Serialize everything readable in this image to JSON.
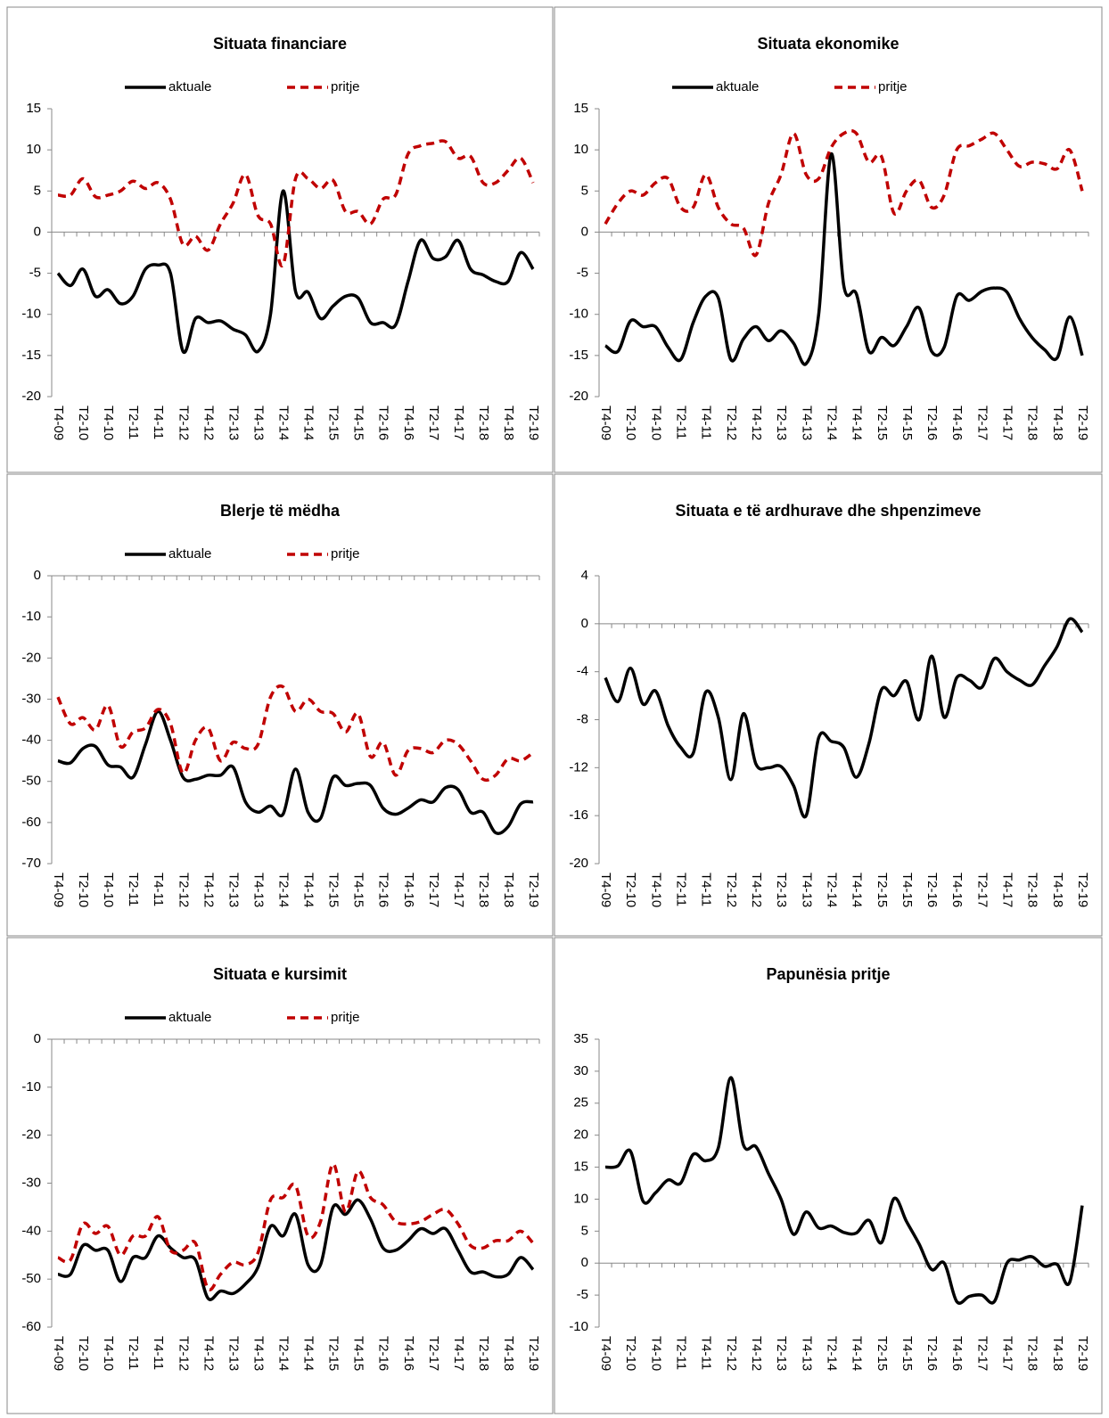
{
  "chart_data": [
    {
      "type": "line",
      "title": "Situata financiare",
      "categories": [
        "T4-09",
        null,
        "T2-10",
        null,
        "T4-10",
        null,
        "T2-11",
        null,
        "T4-11",
        null,
        "T2-12",
        null,
        "T4-12",
        null,
        "T2-13",
        null,
        "T4-13",
        null,
        "T2-14",
        null,
        "T4-14",
        null,
        "T2-15",
        null,
        "T4-15",
        null,
        "T2-16",
        null,
        "T4-16",
        null,
        "T2-17",
        null,
        "T4-17",
        null,
        "T2-18",
        null,
        "T4-18",
        null,
        "T2-19"
      ],
      "series": [
        {
          "name": "aktuale",
          "color": "#000000",
          "style": "solid",
          "values": [
            -5,
            -6.5,
            -4.5,
            -7.8,
            -7,
            -8.7,
            -7.8,
            -4.5,
            -4,
            -5,
            -14.5,
            -10.5,
            -11,
            -10.8,
            -11.8,
            -12.5,
            -14.5,
            -10,
            5,
            -7.2,
            -7.3,
            -10.5,
            -9,
            -7.8,
            -8,
            -11,
            -11,
            -11.3,
            -6,
            -1,
            -3.2,
            -3,
            -1,
            -4.5,
            -5.2,
            -6,
            -6,
            -2.5,
            -4.5
          ]
        },
        {
          "name": "pritje",
          "color": "#c00000",
          "style": "dashed",
          "values": [
            4.5,
            4.5,
            6.5,
            4.3,
            4.5,
            5,
            6.2,
            5.3,
            6,
            4,
            -1.5,
            -0.5,
            -2.2,
            1,
            3.5,
            7,
            2,
            1,
            -4,
            6.5,
            6.5,
            5.3,
            6.3,
            2.5,
            2.5,
            1,
            4,
            4.5,
            9.5,
            10.5,
            10.8,
            11,
            9,
            9.2,
            6,
            6,
            7.5,
            9,
            6
          ]
        }
      ],
      "ylim": [
        -20,
        15
      ],
      "yticks": [
        -20,
        -15,
        -10,
        -5,
        0,
        5,
        10,
        15
      ],
      "legend": "top"
    },
    {
      "type": "line",
      "title": "Situata ekonomike",
      "categories": [
        "T4-09",
        null,
        "T2-10",
        null,
        "T4-10",
        null,
        "T2-11",
        null,
        "T4-11",
        null,
        "T2-12",
        null,
        "T4-12",
        null,
        "T2-13",
        null,
        "T4-13",
        null,
        "T2-14",
        null,
        "T4-14",
        null,
        "T2-15",
        null,
        "T4-15",
        null,
        "T2-16",
        null,
        "T4-16",
        null,
        "T2-17",
        null,
        "T4-17",
        null,
        "T2-18",
        null,
        "T4-18",
        null,
        "T2-19"
      ],
      "series": [
        {
          "name": "aktuale",
          "color": "#000000",
          "style": "solid",
          "values": [
            -13.8,
            -14.5,
            -10.8,
            -11.5,
            -11.5,
            -14,
            -15.5,
            -11,
            -7.8,
            -8,
            -15.5,
            -13,
            -11.5,
            -13.2,
            -12,
            -13.5,
            -16,
            -10,
            9.5,
            -6.5,
            -7.5,
            -14.5,
            -12.8,
            -13.8,
            -11.5,
            -9.2,
            -14.5,
            -14,
            -7.8,
            -8.3,
            -7.2,
            -6.8,
            -7.3,
            -10.5,
            -12.8,
            -14.3,
            -15.3,
            -10.3,
            -15
          ]
        },
        {
          "name": "pritje",
          "color": "#c00000",
          "style": "dashed",
          "values": [
            1,
            3.5,
            5,
            4.5,
            6,
            6.5,
            3,
            3,
            7,
            3,
            1,
            0.5,
            -2.8,
            3.5,
            7,
            12,
            7,
            6.5,
            10.3,
            12,
            12,
            8.5,
            9.2,
            2.3,
            5,
            6.3,
            3,
            4.5,
            10,
            10.5,
            11.3,
            12,
            10,
            8,
            8.5,
            8.3,
            7.7,
            10,
            5
          ]
        }
      ],
      "ylim": [
        -20,
        15
      ],
      "yticks": [
        -20,
        -15,
        -10,
        -5,
        0,
        5,
        10,
        15
      ],
      "legend": "top"
    },
    {
      "type": "line",
      "title": "Blerje të mëdha",
      "categories": [
        "T4-09",
        null,
        "T2-10",
        null,
        "T4-10",
        null,
        "T2-11",
        null,
        "T4-11",
        null,
        "T2-12",
        null,
        "T4-12",
        null,
        "T2-13",
        null,
        "T4-13",
        null,
        "T2-14",
        null,
        "T4-14",
        null,
        "T2-15",
        null,
        "T4-15",
        null,
        "T2-16",
        null,
        "T4-16",
        null,
        "T2-17",
        null,
        "T4-17",
        null,
        "T2-18",
        null,
        "T4-18",
        null,
        "T2-19"
      ],
      "series": [
        {
          "name": "aktuale",
          "color": "#000000",
          "style": "solid",
          "values": [
            -45,
            -45.5,
            -42,
            -41.5,
            -46,
            -46.5,
            -49,
            -41,
            -33,
            -40,
            -49,
            -49.5,
            -48.5,
            -48.5,
            -46.5,
            -55,
            -57.5,
            -56,
            -58,
            -47,
            -57.5,
            -59,
            -49,
            -51,
            -50.5,
            -51,
            -56.5,
            -58,
            -56.5,
            -54.5,
            -55,
            -51.5,
            -52,
            -57.5,
            -57.5,
            -62.5,
            -61,
            -55.5,
            -55
          ]
        },
        {
          "name": "pritje",
          "color": "#c00000",
          "style": "dashed",
          "values": [
            -29.5,
            -36,
            -34.5,
            -37.5,
            -31.5,
            -41.5,
            -38,
            -37,
            -32.5,
            -36,
            -48,
            -40,
            -37,
            -45,
            -40.5,
            -42,
            -41,
            -29.5,
            -27,
            -33,
            -30,
            -33,
            -33.5,
            -38,
            -33.5,
            -44,
            -40.5,
            -48.5,
            -42.5,
            -42,
            -43,
            -40,
            -41,
            -45,
            -49.5,
            -48.5,
            -44.5,
            -45,
            -43
          ]
        }
      ],
      "ylim": [
        -70,
        0
      ],
      "yticks": [
        -70,
        -60,
        -50,
        -40,
        -30,
        -20,
        -10,
        0
      ],
      "legend": "top"
    },
    {
      "type": "line",
      "title": "Situata e të ardhurave dhe shpenzimeve",
      "categories": [
        "T4-09",
        null,
        "T2-10",
        null,
        "T4-10",
        null,
        "T2-11",
        null,
        "T4-11",
        null,
        "T2-12",
        null,
        "T4-12",
        null,
        "T2-13",
        null,
        "T4-13",
        null,
        "T2-14",
        null,
        "T4-14",
        null,
        "T2-15",
        null,
        "T4-15",
        null,
        "T2-16",
        null,
        "T4-16",
        null,
        "T2-17",
        null,
        "T4-17",
        null,
        "T2-18",
        null,
        "T4-18",
        null,
        "T2-19"
      ],
      "series": [
        {
          "color": "#000000",
          "style": "solid",
          "values": [
            -4.5,
            -6.5,
            -3.7,
            -6.7,
            -5.6,
            -8.5,
            -10.3,
            -10.8,
            -5.7,
            -7.8,
            -13,
            -7.5,
            -11.7,
            -12,
            -11.9,
            -13.5,
            -16,
            -9.5,
            -9.8,
            -10.3,
            -12.8,
            -10,
            -5.5,
            -6,
            -4.8,
            -8,
            -2.7,
            -7.8,
            -4.5,
            -4.7,
            -5.3,
            -2.9,
            -4,
            -4.7,
            -5.1,
            -3.5,
            -1.9,
            0.4,
            -0.7
          ]
        }
      ],
      "ylim": [
        -20,
        4
      ],
      "yticks": [
        -20,
        -16,
        -12,
        -8,
        -4,
        0,
        4
      ]
    },
    {
      "type": "line",
      "title": "Situata e kursimit",
      "categories": [
        "T4-09",
        null,
        "T2-10",
        null,
        "T4-10",
        null,
        "T2-11",
        null,
        "T4-11",
        null,
        "T2-12",
        null,
        "T4-12",
        null,
        "T2-13",
        null,
        "T4-13",
        null,
        "T2-14",
        null,
        "T4-14",
        null,
        "T2-15",
        null,
        "T4-15",
        null,
        "T2-16",
        null,
        "T4-16",
        null,
        "T2-17",
        null,
        "T4-17",
        null,
        "T2-18",
        null,
        "T4-18",
        null,
        "T2-19"
      ],
      "series": [
        {
          "name": "aktuale",
          "color": "#000000",
          "style": "solid",
          "values": [
            -49,
            -49,
            -43,
            -44,
            -44,
            -50.5,
            -45.5,
            -45.5,
            -41,
            -43.5,
            -45.5,
            -46,
            -54,
            -52.5,
            -53,
            -51,
            -47.5,
            -39,
            -41,
            -36.5,
            -47,
            -47,
            -35,
            -36.5,
            -33.5,
            -37.5,
            -43.5,
            -44,
            -42,
            -39.5,
            -40.5,
            -39.5,
            -44,
            -48.5,
            -48.5,
            -49.5,
            -49,
            -45.5,
            -48
          ]
        },
        {
          "name": "pritje",
          "color": "#c00000",
          "style": "dashed",
          "values": [
            -45.5,
            -46,
            -38.5,
            -40.5,
            -39,
            -45,
            -41,
            -41,
            -37,
            -44,
            -44,
            -42.5,
            -52,
            -49,
            -46.5,
            -47,
            -44.5,
            -33.5,
            -33,
            -30.5,
            -41,
            -38,
            -26,
            -36,
            -27.5,
            -33,
            -34.5,
            -38,
            -38.5,
            -38,
            -36.5,
            -35.5,
            -38.5,
            -43,
            -43.5,
            -42,
            -42,
            -40,
            -42.5
          ]
        }
      ],
      "ylim": [
        -60,
        0
      ],
      "yticks": [
        -60,
        -50,
        -40,
        -30,
        -20,
        -10,
        0
      ],
      "legend": "top"
    },
    {
      "type": "line",
      "title": "Papunësia pritje",
      "categories": [
        "T4-09",
        null,
        "T2-10",
        null,
        "T4-10",
        null,
        "T2-11",
        null,
        "T4-11",
        null,
        "T2-12",
        null,
        "T4-12",
        null,
        "T2-13",
        null,
        "T4-13",
        null,
        "T2-14",
        null,
        "T4-14",
        null,
        "T2-15",
        null,
        "T4-15",
        null,
        "T2-16",
        null,
        "T4-16",
        null,
        "T2-17",
        null,
        "T4-17",
        null,
        "T2-18",
        null,
        "T4-18",
        null,
        "T2-19"
      ],
      "series": [
        {
          "color": "#000000",
          "style": "solid",
          "values": [
            15,
            15.2,
            17.5,
            9.7,
            11,
            13,
            12.5,
            17,
            16,
            18,
            29,
            18.5,
            18.2,
            14,
            10,
            4.5,
            8,
            5.5,
            5.8,
            4.8,
            4.7,
            6.7,
            3.2,
            10.1,
            6.5,
            3,
            -1,
            0,
            -6,
            -5.2,
            -5,
            -6,
            0,
            0.5,
            1,
            -0.5,
            -0.2,
            -3,
            9
          ]
        }
      ],
      "ylim": [
        -10,
        35
      ],
      "yticks": [
        -10,
        -5,
        0,
        5,
        10,
        15,
        20,
        25,
        30,
        35
      ]
    }
  ]
}
